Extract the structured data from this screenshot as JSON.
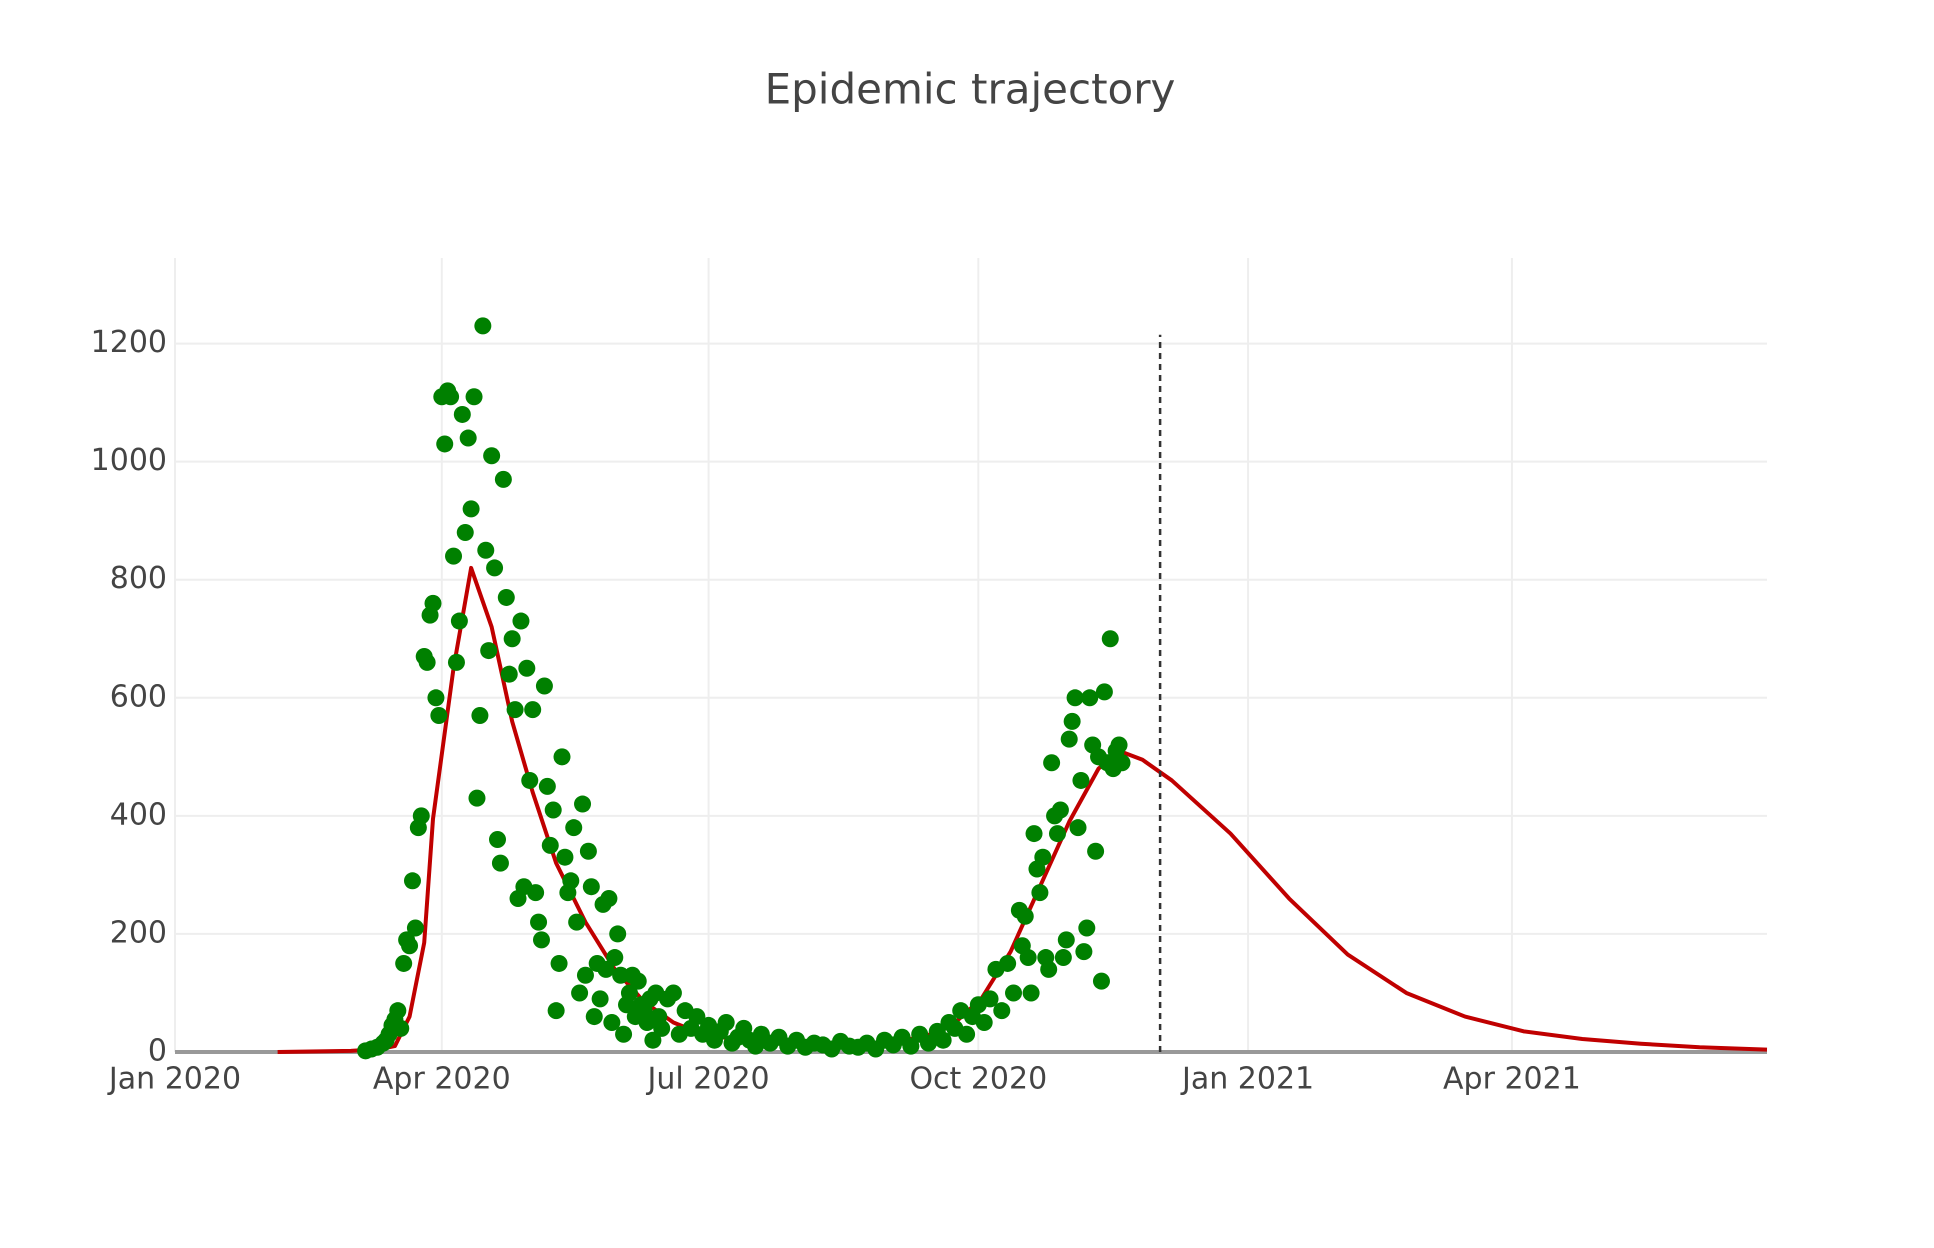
{
  "chart_data": {
    "type": "line",
    "title": "Epidemic trajectory",
    "xlim": [
      0,
      543
    ],
    "ylim": [
      0,
      1345
    ],
    "xticks": [
      {
        "value": 0,
        "label": "Jan 2020"
      },
      {
        "value": 91,
        "label": "Apr 2020"
      },
      {
        "value": 182,
        "label": "Jul 2020"
      },
      {
        "value": 274,
        "label": "Oct 2020"
      },
      {
        "value": 366,
        "label": "Jan 2021"
      },
      {
        "value": 456,
        "label": "Apr 2021"
      }
    ],
    "yticks": [
      0,
      200,
      400,
      600,
      800,
      1000,
      1200
    ],
    "grid": true,
    "vline": {
      "x": 336,
      "y": [
        0,
        1215
      ],
      "style": "dashed",
      "color": "#333333"
    },
    "series": [
      {
        "type": "scatter",
        "color": "#008000",
        "x": [
          65,
          67,
          69,
          71,
          72,
          73,
          74,
          75,
          76,
          77,
          78,
          79,
          80,
          81,
          82,
          83,
          84,
          85,
          86,
          87,
          88,
          89,
          90,
          91,
          92,
          93,
          94,
          95,
          96,
          97,
          98,
          99,
          100,
          101,
          102,
          103,
          104,
          105,
          106,
          107,
          108,
          109,
          110,
          111,
          112,
          113,
          114,
          115,
          116,
          117,
          118,
          119,
          120,
          121,
          122,
          123,
          124,
          125,
          126,
          127,
          128,
          129,
          130,
          131,
          132,
          133,
          134,
          135,
          136,
          137,
          138,
          139,
          140,
          141,
          142,
          143,
          144,
          145,
          146,
          147,
          148,
          149,
          150,
          151,
          152,
          153,
          154,
          155,
          156,
          157,
          158,
          159,
          160,
          161,
          162,
          163,
          164,
          165,
          166,
          168,
          170,
          172,
          174,
          176,
          178,
          180,
          182,
          184,
          186,
          188,
          190,
          192,
          194,
          196,
          198,
          200,
          203,
          206,
          209,
          212,
          215,
          218,
          221,
          224,
          227,
          230,
          233,
          236,
          239,
          242,
          245,
          248,
          251,
          254,
          257,
          260,
          262,
          264,
          266,
          268,
          270,
          272,
          274,
          276,
          278,
          280,
          282,
          284,
          286,
          288,
          289,
          290,
          291,
          292,
          293,
          294,
          295,
          296,
          297,
          298,
          299,
          300,
          301,
          302,
          303,
          304,
          305,
          306,
          307,
          308,
          309,
          310,
          311,
          312,
          313,
          314,
          315,
          316,
          317,
          318,
          319,
          320,
          321,
          322,
          323
        ],
        "values": [
          2,
          5,
          8,
          15,
          20,
          30,
          45,
          55,
          70,
          40,
          150,
          190,
          180,
          290,
          210,
          380,
          400,
          670,
          660,
          740,
          760,
          600,
          570,
          1110,
          1030,
          1120,
          1110,
          840,
          660,
          730,
          1080,
          880,
          1040,
          920,
          1110,
          430,
          570,
          1230,
          850,
          680,
          1010,
          820,
          360,
          320,
          970,
          770,
          640,
          700,
          580,
          260,
          730,
          280,
          650,
          460,
          580,
          270,
          220,
          190,
          620,
          450,
          350,
          410,
          70,
          150,
          500,
          330,
          270,
          290,
          380,
          220,
          100,
          420,
          130,
          340,
          280,
          60,
          150,
          90,
          250,
          140,
          260,
          50,
          160,
          200,
          130,
          30,
          80,
          100,
          130,
          60,
          120,
          80,
          70,
          50,
          90,
          20,
          100,
          60,
          40,
          90,
          100,
          30,
          70,
          40,
          60,
          30,
          45,
          20,
          35,
          50,
          15,
          25,
          40,
          20,
          10,
          30,
          15,
          25,
          10,
          20,
          8,
          15,
          12,
          5,
          18,
          10,
          8,
          15,
          5,
          20,
          12,
          25,
          10,
          30,
          15,
          35,
          20,
          50,
          40,
          70,
          30,
          60,
          80,
          50,
          90,
          140,
          70,
          150,
          100,
          240,
          180,
          230,
          160,
          100,
          370,
          310,
          270,
          330,
          160,
          140,
          490,
          400,
          370,
          410,
          160,
          190,
          530,
          560,
          600,
          380,
          460,
          170,
          210,
          600,
          520,
          340,
          500,
          120,
          610,
          490,
          700,
          480,
          510,
          520,
          490
        ]
      },
      {
        "type": "line",
        "color": "#c00000",
        "x": [
          35,
          60,
          70,
          75,
          80,
          85,
          88,
          95,
          101,
          108,
          115,
          122,
          130,
          140,
          150,
          160,
          170,
          180,
          200,
          220,
          240,
          255,
          265,
          275,
          285,
          295,
          305,
          315,
          322,
          330,
          340,
          360,
          380,
          400,
          420,
          440,
          460,
          480,
          500,
          520,
          543
        ],
        "values": [
          0,
          2,
          5,
          10,
          60,
          185,
          395,
          650,
          820,
          720,
          560,
          440,
          320,
          220,
          140,
          85,
          50,
          30,
          15,
          12,
          15,
          25,
          45,
          90,
          170,
          280,
          390,
          480,
          510,
          495,
          460,
          370,
          260,
          165,
          100,
          60,
          35,
          22,
          14,
          8,
          4
        ]
      }
    ]
  }
}
